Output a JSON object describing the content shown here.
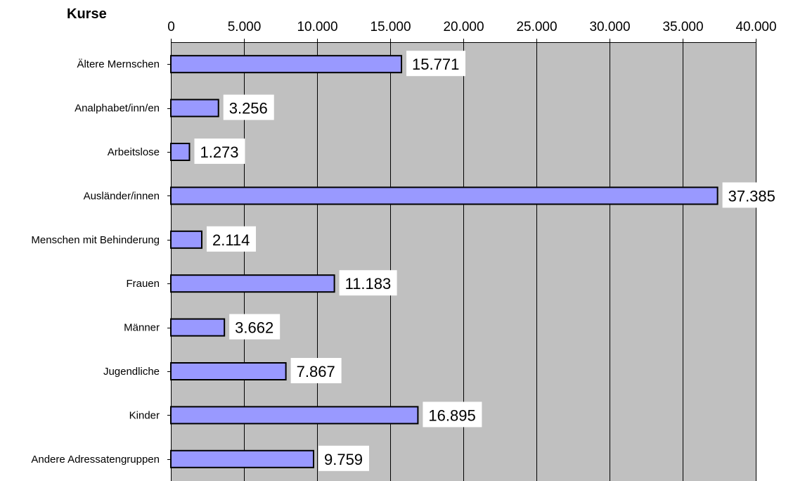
{
  "chart_data": {
    "type": "bar",
    "orientation": "horizontal",
    "title": "Kurse",
    "xlabel": "",
    "ylabel": "",
    "categories": [
      "Ältere Mernschen",
      "Analphabet/inn/en",
      "Arbeitslose",
      "Ausländer/innen",
      "Menschen mit Behinderung",
      "Frauen",
      "Männer",
      "Jugendliche",
      "Kinder",
      "Andere Adressatengruppen"
    ],
    "values": [
      15771,
      3256,
      1273,
      37385,
      2114,
      11183,
      3662,
      7867,
      16895,
      9759
    ],
    "value_labels": [
      "15.771",
      "3.256",
      "1.273",
      "37.385",
      "2.114",
      "11.183",
      "3.662",
      "7.867",
      "16.895",
      "9.759"
    ],
    "xlim": [
      0,
      40000
    ],
    "x_ticks": [
      0,
      5000,
      10000,
      15000,
      20000,
      25000,
      30000,
      35000,
      40000
    ],
    "x_tick_labels": [
      "0",
      "5.000",
      "10.000",
      "15.000",
      "20.000",
      "25.000",
      "30.000",
      "35.000",
      "40.000"
    ],
    "x_axis_position": "top",
    "grid": true,
    "legend": false,
    "colors": {
      "bar_fill": "#9999FF",
      "bar_stroke": "#000000",
      "plot_background": "#C0C0C0",
      "grid": "#000000",
      "label_box": "#FFFFFF"
    }
  }
}
